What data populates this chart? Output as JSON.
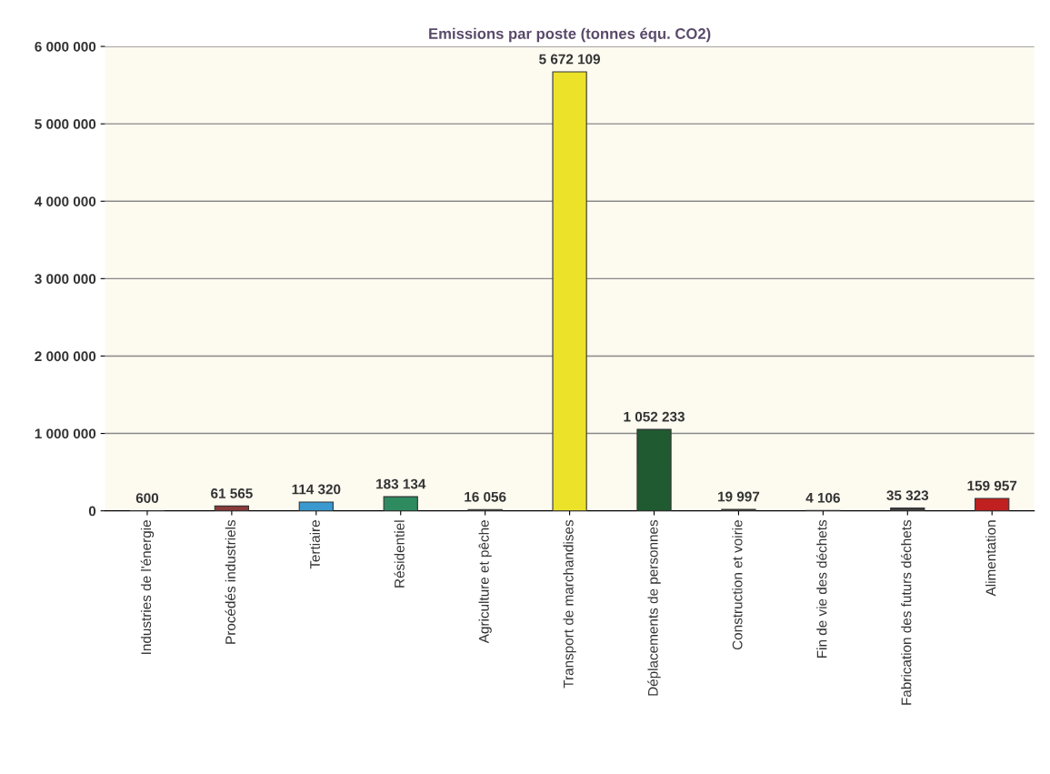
{
  "chart_data": {
    "type": "bar",
    "title": "Emissions par poste (tonnes équ. CO2)",
    "categories": [
      "Industries de l'énergie",
      "Procédés industriels",
      "Tertiaire",
      "Résidentiel",
      "Agriculture et pêche",
      "Transport de marchandises",
      "Déplacements de personnes",
      "Construction et voirie",
      "Fin de vie des déchets",
      "Fabrication des futurs déchets",
      "Alimentation"
    ],
    "values": [
      600,
      61565,
      114320,
      183134,
      16056,
      5672109,
      1052233,
      19997,
      4106,
      35323,
      159957
    ],
    "value_labels": [
      "600",
      "61 565",
      "114 320",
      "183 134",
      "16 056",
      "5 672 109",
      "1 052 233",
      "19 997",
      "4 106",
      "35 323",
      "159 957"
    ],
    "colors": [
      "#404040",
      "#8b3a3a",
      "#3a9ad0",
      "#2e8b60",
      "#404040",
      "#ece22a",
      "#1f5a30",
      "#404040",
      "#404040",
      "#404040",
      "#c02020"
    ],
    "ylim": [
      0,
      6000000
    ],
    "yticks": [
      {
        "value": 0,
        "label": "0"
      },
      {
        "value": 1000000,
        "label": "1 000 000"
      },
      {
        "value": 2000000,
        "label": "2 000 000"
      },
      {
        "value": 3000000,
        "label": "3 000 000"
      },
      {
        "value": 4000000,
        "label": "4 000 000"
      },
      {
        "value": 5000000,
        "label": "5 000 000"
      },
      {
        "value": 6000000,
        "label": "6 000 000"
      }
    ],
    "grid": "y"
  }
}
